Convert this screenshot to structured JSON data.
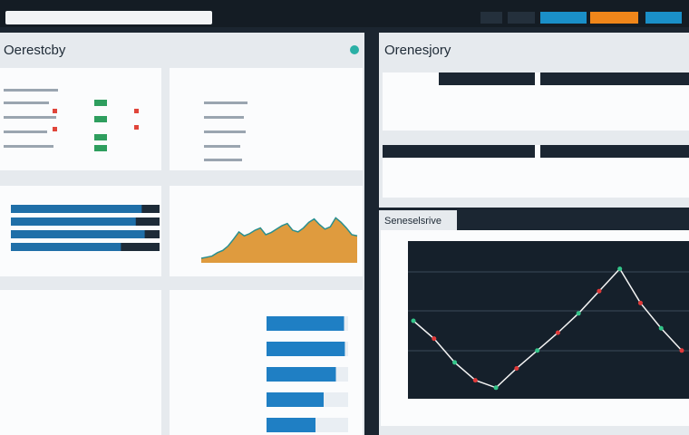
{
  "left_panel": {
    "title": "Oerestcby"
  },
  "right_panel": {
    "title": "Orenesjory"
  },
  "trend_panel": {
    "title": "Seneselsrive"
  },
  "area_chart": {
    "type": "area",
    "values": [
      8,
      10,
      12,
      18,
      22,
      30,
      42,
      55,
      48,
      52,
      58,
      62,
      50,
      54,
      60,
      66,
      70,
      58,
      55,
      62,
      72,
      78,
      68,
      60,
      64,
      80,
      72,
      62,
      50,
      48
    ],
    "color": "#d98a1c",
    "ylim": [
      0,
      100
    ]
  },
  "hbar_chart": {
    "type": "bar",
    "values": [
      88,
      84,
      90,
      74
    ],
    "color": "#1f6fa8",
    "xlim": [
      0,
      100
    ]
  },
  "progress_bars": {
    "type": "bar",
    "values": [
      95,
      96,
      85,
      70,
      60
    ],
    "color": "#1f7fc4",
    "xlim": [
      0,
      100
    ]
  },
  "line_chart": {
    "type": "line",
    "values": [
      50,
      38,
      22,
      10,
      5,
      18,
      30,
      42,
      55,
      70,
      85,
      62,
      45,
      30
    ],
    "color": "#f4f4f4",
    "ylim": [
      0,
      100
    ]
  }
}
